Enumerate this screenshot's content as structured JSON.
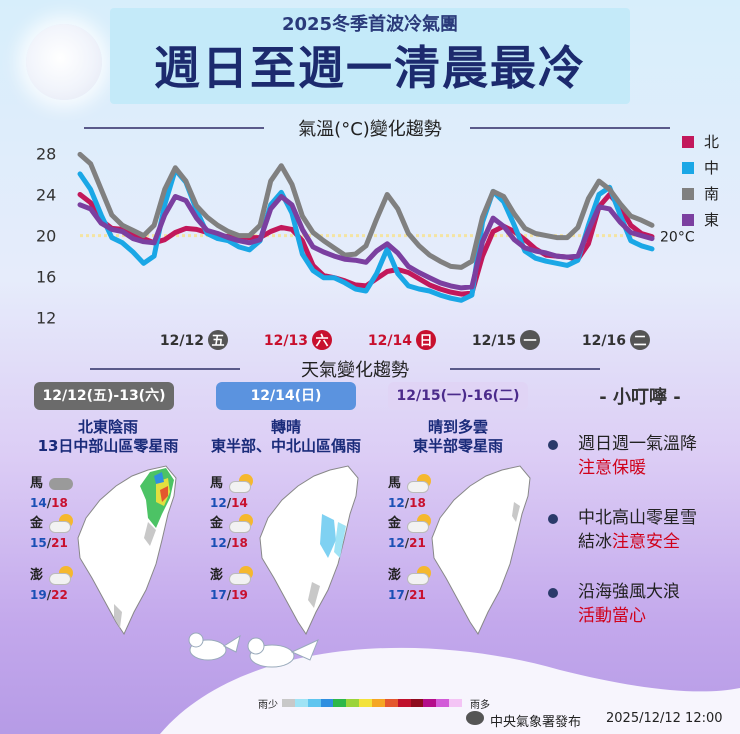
{
  "header": {
    "subtitle": "2025冬季首波冷氣團",
    "title": "週日至週一清晨最冷"
  },
  "chart_data": {
    "type": "line",
    "title": "氣溫(°C)變化趨勢",
    "x_labels": [
      {
        "date": "12/12",
        "weekday": "五",
        "highlight": false
      },
      {
        "date": "12/13",
        "weekday": "六",
        "highlight": true
      },
      {
        "date": "12/14",
        "weekday": "日",
        "highlight": true
      },
      {
        "date": "12/15",
        "weekday": "一",
        "highlight": false
      },
      {
        "date": "12/16",
        "weekday": "二",
        "highlight": false
      }
    ],
    "yticks": [
      12,
      16,
      20,
      24,
      28
    ],
    "ylim": [
      11,
      29.5
    ],
    "xlim": [
      0,
      108
    ],
    "reference_line": {
      "value": 20,
      "label": "20°C"
    },
    "legend_placement": "top-right",
    "series": [
      {
        "name": "北",
        "color": "#c2185b",
        "x": [
          0,
          2,
          4,
          6,
          8,
          10,
          12,
          14,
          16,
          18,
          20,
          22,
          24,
          26,
          28,
          30,
          32,
          34,
          36,
          38,
          40,
          42,
          44,
          46,
          48,
          50,
          52,
          54,
          56,
          58,
          60,
          62,
          64,
          66,
          68,
          70,
          72,
          74,
          76,
          78,
          80,
          82,
          84,
          86,
          88,
          90,
          92,
          94,
          96,
          98,
          100,
          102,
          104,
          106,
          108
        ],
        "y": [
          24,
          23.2,
          21.5,
          20.7,
          20.6,
          20.2,
          19.7,
          19.3,
          19.6,
          20.3,
          20.7,
          20.6,
          20.3,
          20.0,
          19.9,
          19.9,
          19.8,
          19.8,
          20.4,
          20.8,
          20.6,
          19.5,
          17.1,
          16.1,
          15.9,
          15.6,
          15.2,
          15.1,
          15.8,
          16.5,
          16.7,
          16.4,
          15.8,
          15.2,
          14.8,
          14.5,
          14.3,
          14.4,
          18.0,
          20.4,
          20.9,
          20.4,
          19.6,
          18.7,
          18.1,
          18.0,
          17.9,
          17.7,
          19.2,
          22.8,
          24.0,
          22.8,
          21.0,
          20.2,
          19.9
        ]
      },
      {
        "name": "中",
        "color": "#1aa7e6",
        "x": [
          0,
          2,
          4,
          6,
          8,
          10,
          12,
          14,
          16,
          18,
          20,
          22,
          24,
          26,
          28,
          30,
          32,
          34,
          36,
          38,
          40,
          42,
          44,
          46,
          48,
          50,
          52,
          54,
          56,
          58,
          60,
          62,
          64,
          66,
          68,
          70,
          72,
          74,
          76,
          78,
          80,
          82,
          84,
          86,
          88,
          90,
          92,
          94,
          96,
          98,
          100,
          102,
          104,
          106,
          108
        ],
        "y": [
          26,
          24.5,
          22,
          19.8,
          19.3,
          18.4,
          17.3,
          18,
          23,
          26.4,
          25.2,
          22.5,
          20.2,
          19.7,
          19.5,
          18.9,
          18.6,
          19.5,
          23,
          24.2,
          22.2,
          18.2,
          16.6,
          15.9,
          15.9,
          15.4,
          14.8,
          14.6,
          16.3,
          18.7,
          16.3,
          15.1,
          14.8,
          14.6,
          14.2,
          13.9,
          13.7,
          14.2,
          21.3,
          24.3,
          23.3,
          21.0,
          18.5,
          17.8,
          17.5,
          17.3,
          17.1,
          17.6,
          21,
          24,
          24.7,
          22,
          19.5,
          19.0,
          18.7
        ]
      },
      {
        "name": "南",
        "color": "#808080",
        "x": [
          0,
          2,
          4,
          6,
          8,
          10,
          12,
          14,
          16,
          18,
          20,
          22,
          24,
          26,
          28,
          30,
          32,
          34,
          36,
          38,
          40,
          42,
          44,
          46,
          48,
          50,
          52,
          54,
          56,
          58,
          60,
          62,
          64,
          66,
          68,
          70,
          72,
          74,
          76,
          78,
          80,
          82,
          84,
          86,
          88,
          90,
          92,
          94,
          96,
          98,
          100,
          102,
          104,
          106,
          108
        ],
        "y": [
          27.9,
          27,
          24.5,
          22,
          21,
          20.5,
          20,
          21,
          24.5,
          26.6,
          25.3,
          22.9,
          21.8,
          21,
          20.4,
          20,
          20,
          21,
          25.3,
          26.8,
          25,
          21.9,
          20.3,
          19.5,
          18.8,
          18.1,
          18.2,
          19,
          21.6,
          24,
          22.6,
          20.2,
          19,
          18.1,
          17.5,
          17,
          16.9,
          17.5,
          21.8,
          24.3,
          23.8,
          22.1,
          20.7,
          20.2,
          20.0,
          19.8,
          19.8,
          20.8,
          23.6,
          25.3,
          24.5,
          23.1,
          21.9,
          21.5,
          21.0
        ]
      },
      {
        "name": "東",
        "color": "#7b3fa0",
        "x": [
          0,
          2,
          4,
          6,
          8,
          10,
          12,
          14,
          16,
          18,
          20,
          22,
          24,
          26,
          28,
          30,
          32,
          34,
          36,
          38,
          40,
          42,
          44,
          46,
          48,
          50,
          52,
          54,
          56,
          58,
          60,
          62,
          64,
          66,
          68,
          70,
          72,
          74,
          76,
          78,
          80,
          82,
          84,
          86,
          88,
          90,
          92,
          94,
          96,
          98,
          100,
          102,
          104,
          106,
          108
        ],
        "y": [
          23,
          22.6,
          21.2,
          20.6,
          20.4,
          19.7,
          19.4,
          19.3,
          22,
          23.8,
          23.4,
          21.7,
          20.5,
          20.2,
          19.8,
          19.5,
          19.3,
          19.6,
          22.6,
          23.8,
          23.0,
          20.6,
          18.9,
          18.4,
          18.0,
          17.7,
          17.6,
          17.4,
          18.5,
          19.2,
          18.3,
          17,
          16.4,
          15.9,
          15.4,
          15.1,
          14.9,
          15.0,
          19.4,
          21.7,
          20.9,
          19.6,
          18.8,
          18.5,
          18.3,
          18.0,
          17.9,
          18.0,
          20.5,
          22.8,
          22.6,
          21.3,
          20.3,
          20.0,
          19.7
        ]
      }
    ]
  },
  "weather_section": {
    "title": "天氣變化趨勢",
    "panels": [
      {
        "period_label": "12/12(五)-13(六)",
        "desc_line1": "北東陰雨",
        "desc_line2": "13日中部山區零星雨",
        "islands": [
          {
            "name": "馬",
            "icon": "cloudy-icon",
            "low": "14",
            "high": "18"
          },
          {
            "name": "金",
            "icon": "partly-sunny-icon",
            "low": "15",
            "high": "21"
          },
          {
            "name": "澎",
            "icon": "partly-sunny-icon",
            "low": "19",
            "high": "22"
          }
        ]
      },
      {
        "period_label": "12/14(日)",
        "desc_line1": "轉晴",
        "desc_line2": "東半部、中北山區偶雨",
        "islands": [
          {
            "name": "馬",
            "icon": "partly-sunny-icon",
            "low": "12",
            "high": "14"
          },
          {
            "name": "金",
            "icon": "partly-sunny-icon",
            "low": "12",
            "high": "18"
          },
          {
            "name": "澎",
            "icon": "partly-sunny-icon",
            "low": "17",
            "high": "19"
          }
        ]
      },
      {
        "period_label": "12/15(一)-16(二)",
        "desc_line1": "晴到多雲",
        "desc_line2": "東半部零星雨",
        "islands": [
          {
            "name": "馬",
            "icon": "partly-sunny-icon",
            "low": "12",
            "high": "18"
          },
          {
            "name": "金",
            "icon": "partly-sunny-icon",
            "low": "12",
            "high": "21"
          },
          {
            "name": "澎",
            "icon": "partly-sunny-icon",
            "low": "17",
            "high": "21"
          }
        ]
      }
    ]
  },
  "tips": {
    "title": "- 小叮嚀 -",
    "items": [
      {
        "text": "週日週一氣溫降",
        "warn": "注意保暖"
      },
      {
        "text": "中北高山零星雪",
        "text2": "結冰",
        "warn": "注意安全"
      },
      {
        "text": "沿海強風大浪",
        "warn": "活動當心"
      }
    ]
  },
  "rain_legend": {
    "low_label": "雨少",
    "high_label": "雨多",
    "colors": [
      "#c8c8c8",
      "#9fe3f5",
      "#5fc5ef",
      "#2f8fe0",
      "#2db84a",
      "#9bd43a",
      "#f3e23b",
      "#f5a623",
      "#e4572e",
      "#c0102c",
      "#8e0b1e",
      "#b40d8a",
      "#d25bd8",
      "#f4c4f5"
    ]
  },
  "footer": {
    "agency": "中央氣象署發布",
    "issued": "2025/12/12 12:00"
  },
  "colors": {
    "title": "#1c2a6e",
    "red_warn": "#d0021b",
    "ref_line": "#f7e7a9"
  }
}
